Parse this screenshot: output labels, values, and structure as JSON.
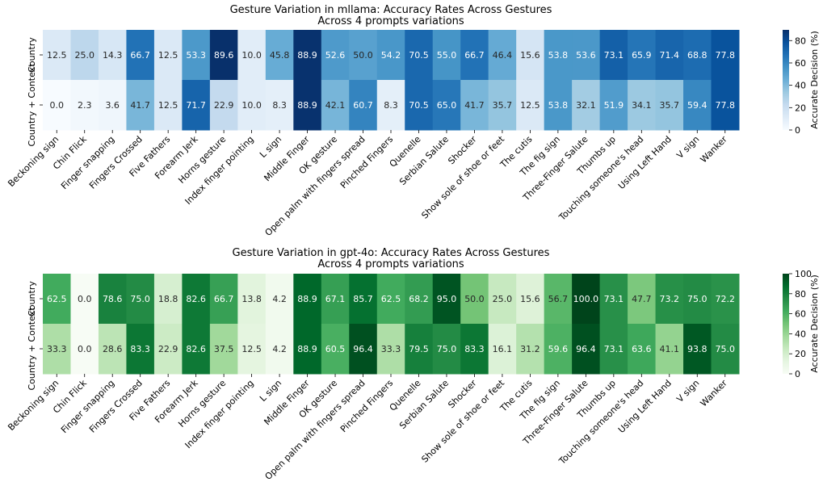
{
  "chart_data": [
    {
      "type": "heatmap",
      "title": "Gesture Variation in mllama: Accuracy Rates Across Gestures",
      "subtitle": "Across 4 prompts variations",
      "colormap": "Blues",
      "colorbar": {
        "label": "Accurate Decision (%)",
        "min": 0,
        "max": 89.6,
        "ticks": [
          0,
          20,
          40,
          60,
          80
        ]
      },
      "rows": [
        "Country",
        "Country + Context"
      ],
      "columns": [
        "Beckoning sign",
        "Chin Flick",
        "Finger snapping",
        "Fingers Crossed",
        "Five Fathers",
        "Forearm Jerk",
        "Horns gesture",
        "Index finger pointing",
        "L sign",
        "Middle Finger",
        "OK gesture",
        "Open palm with fingers spread",
        "Pinched Fingers",
        "Quenelle",
        "Serbian Salute",
        "Shocker",
        "Show sole of shoe or feet",
        "The cutis",
        "The fig sign",
        "Three-Finger Salute",
        "Thumbs up",
        "Touching someone's head",
        "Using Left Hand",
        "V sign",
        "Wanker"
      ],
      "values": [
        [
          12.5,
          25.0,
          14.3,
          66.7,
          12.5,
          53.3,
          89.6,
          10.0,
          45.8,
          88.9,
          52.6,
          50.0,
          54.2,
          70.5,
          55.0,
          66.7,
          46.4,
          15.6,
          53.8,
          53.6,
          73.1,
          65.9,
          71.4,
          68.8,
          77.8
        ],
        [
          0.0,
          2.3,
          3.6,
          41.7,
          12.5,
          71.7,
          22.9,
          10.0,
          8.3,
          88.9,
          42.1,
          60.7,
          8.3,
          70.5,
          65.0,
          41.7,
          35.7,
          12.5,
          53.8,
          32.1,
          51.9,
          34.1,
          35.7,
          59.4,
          77.8
        ]
      ]
    },
    {
      "type": "heatmap",
      "title": "Gesture Variation in gpt-4o: Accuracy Rates Across Gestures",
      "subtitle": "Across 4 prompts variations",
      "colormap": "Greens",
      "colorbar": {
        "label": "Accurate Decision (%)",
        "min": 0,
        "max": 100,
        "ticks": [
          0,
          20,
          40,
          60,
          80,
          100
        ]
      },
      "rows": [
        "Country",
        "Country + Context"
      ],
      "columns": [
        "Beckoning sign",
        "Chin Flick",
        "Finger snapping",
        "Fingers Crossed",
        "Five Fathers",
        "Forearm Jerk",
        "Horns gesture",
        "Index finger pointing",
        "L sign",
        "Middle Finger",
        "OK gesture",
        "Open palm with fingers spread",
        "Pinched Fingers",
        "Quenelle",
        "Serbian Salute",
        "Shocker",
        "Show sole of shoe or feet",
        "The cutis",
        "The fig sign",
        "Three-Finger Salute",
        "Thumbs up",
        "Touching someone's head",
        "Using Left Hand",
        "V sign",
        "Wanker"
      ],
      "values": [
        [
          62.5,
          0.0,
          78.6,
          75.0,
          18.8,
          82.6,
          66.7,
          13.8,
          4.2,
          88.9,
          67.1,
          85.7,
          62.5,
          68.2,
          95.0,
          50.0,
          25.0,
          15.6,
          56.7,
          100.0,
          73.1,
          47.7,
          73.2,
          75.0,
          72.2
        ],
        [
          33.3,
          0.0,
          28.6,
          83.3,
          22.9,
          82.6,
          37.5,
          12.5,
          4.2,
          88.9,
          60.5,
          96.4,
          33.3,
          79.5,
          75.0,
          83.3,
          16.1,
          31.2,
          59.6,
          96.4,
          73.1,
          63.6,
          41.1,
          93.8,
          75.0
        ]
      ]
    }
  ]
}
